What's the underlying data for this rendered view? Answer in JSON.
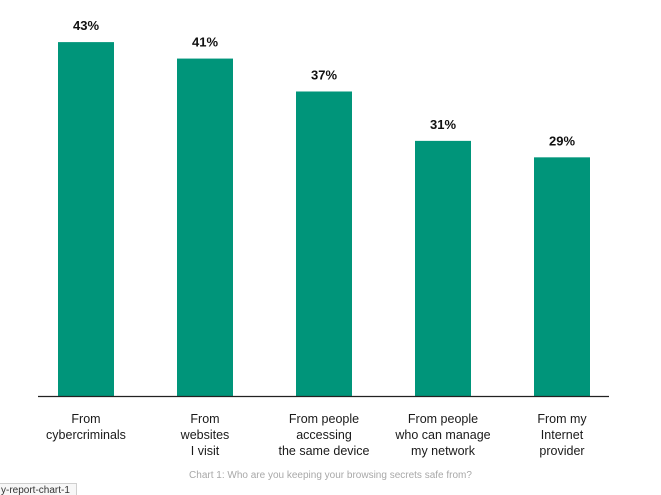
{
  "chart_data": {
    "type": "bar",
    "categories": [
      [
        "From",
        "cybercriminals"
      ],
      [
        "From",
        "websites",
        "I visit"
      ],
      [
        "From people",
        "accessing",
        "the same device"
      ],
      [
        "From people",
        "who can manage",
        "my network"
      ],
      [
        "From my",
        "Internet",
        "provider"
      ]
    ],
    "values": [
      43,
      41,
      37,
      31,
      29
    ],
    "value_labels": [
      "43%",
      "41%",
      "37%",
      "31%",
      "29%"
    ],
    "bar_color": "#00957a",
    "axis_color": "#222222",
    "ylim": [
      0,
      45
    ],
    "grid": false
  },
  "caption": "Chart 1: Who are you keeping your browsing secrets safe from?",
  "tooltip": "y-report-chart-1"
}
